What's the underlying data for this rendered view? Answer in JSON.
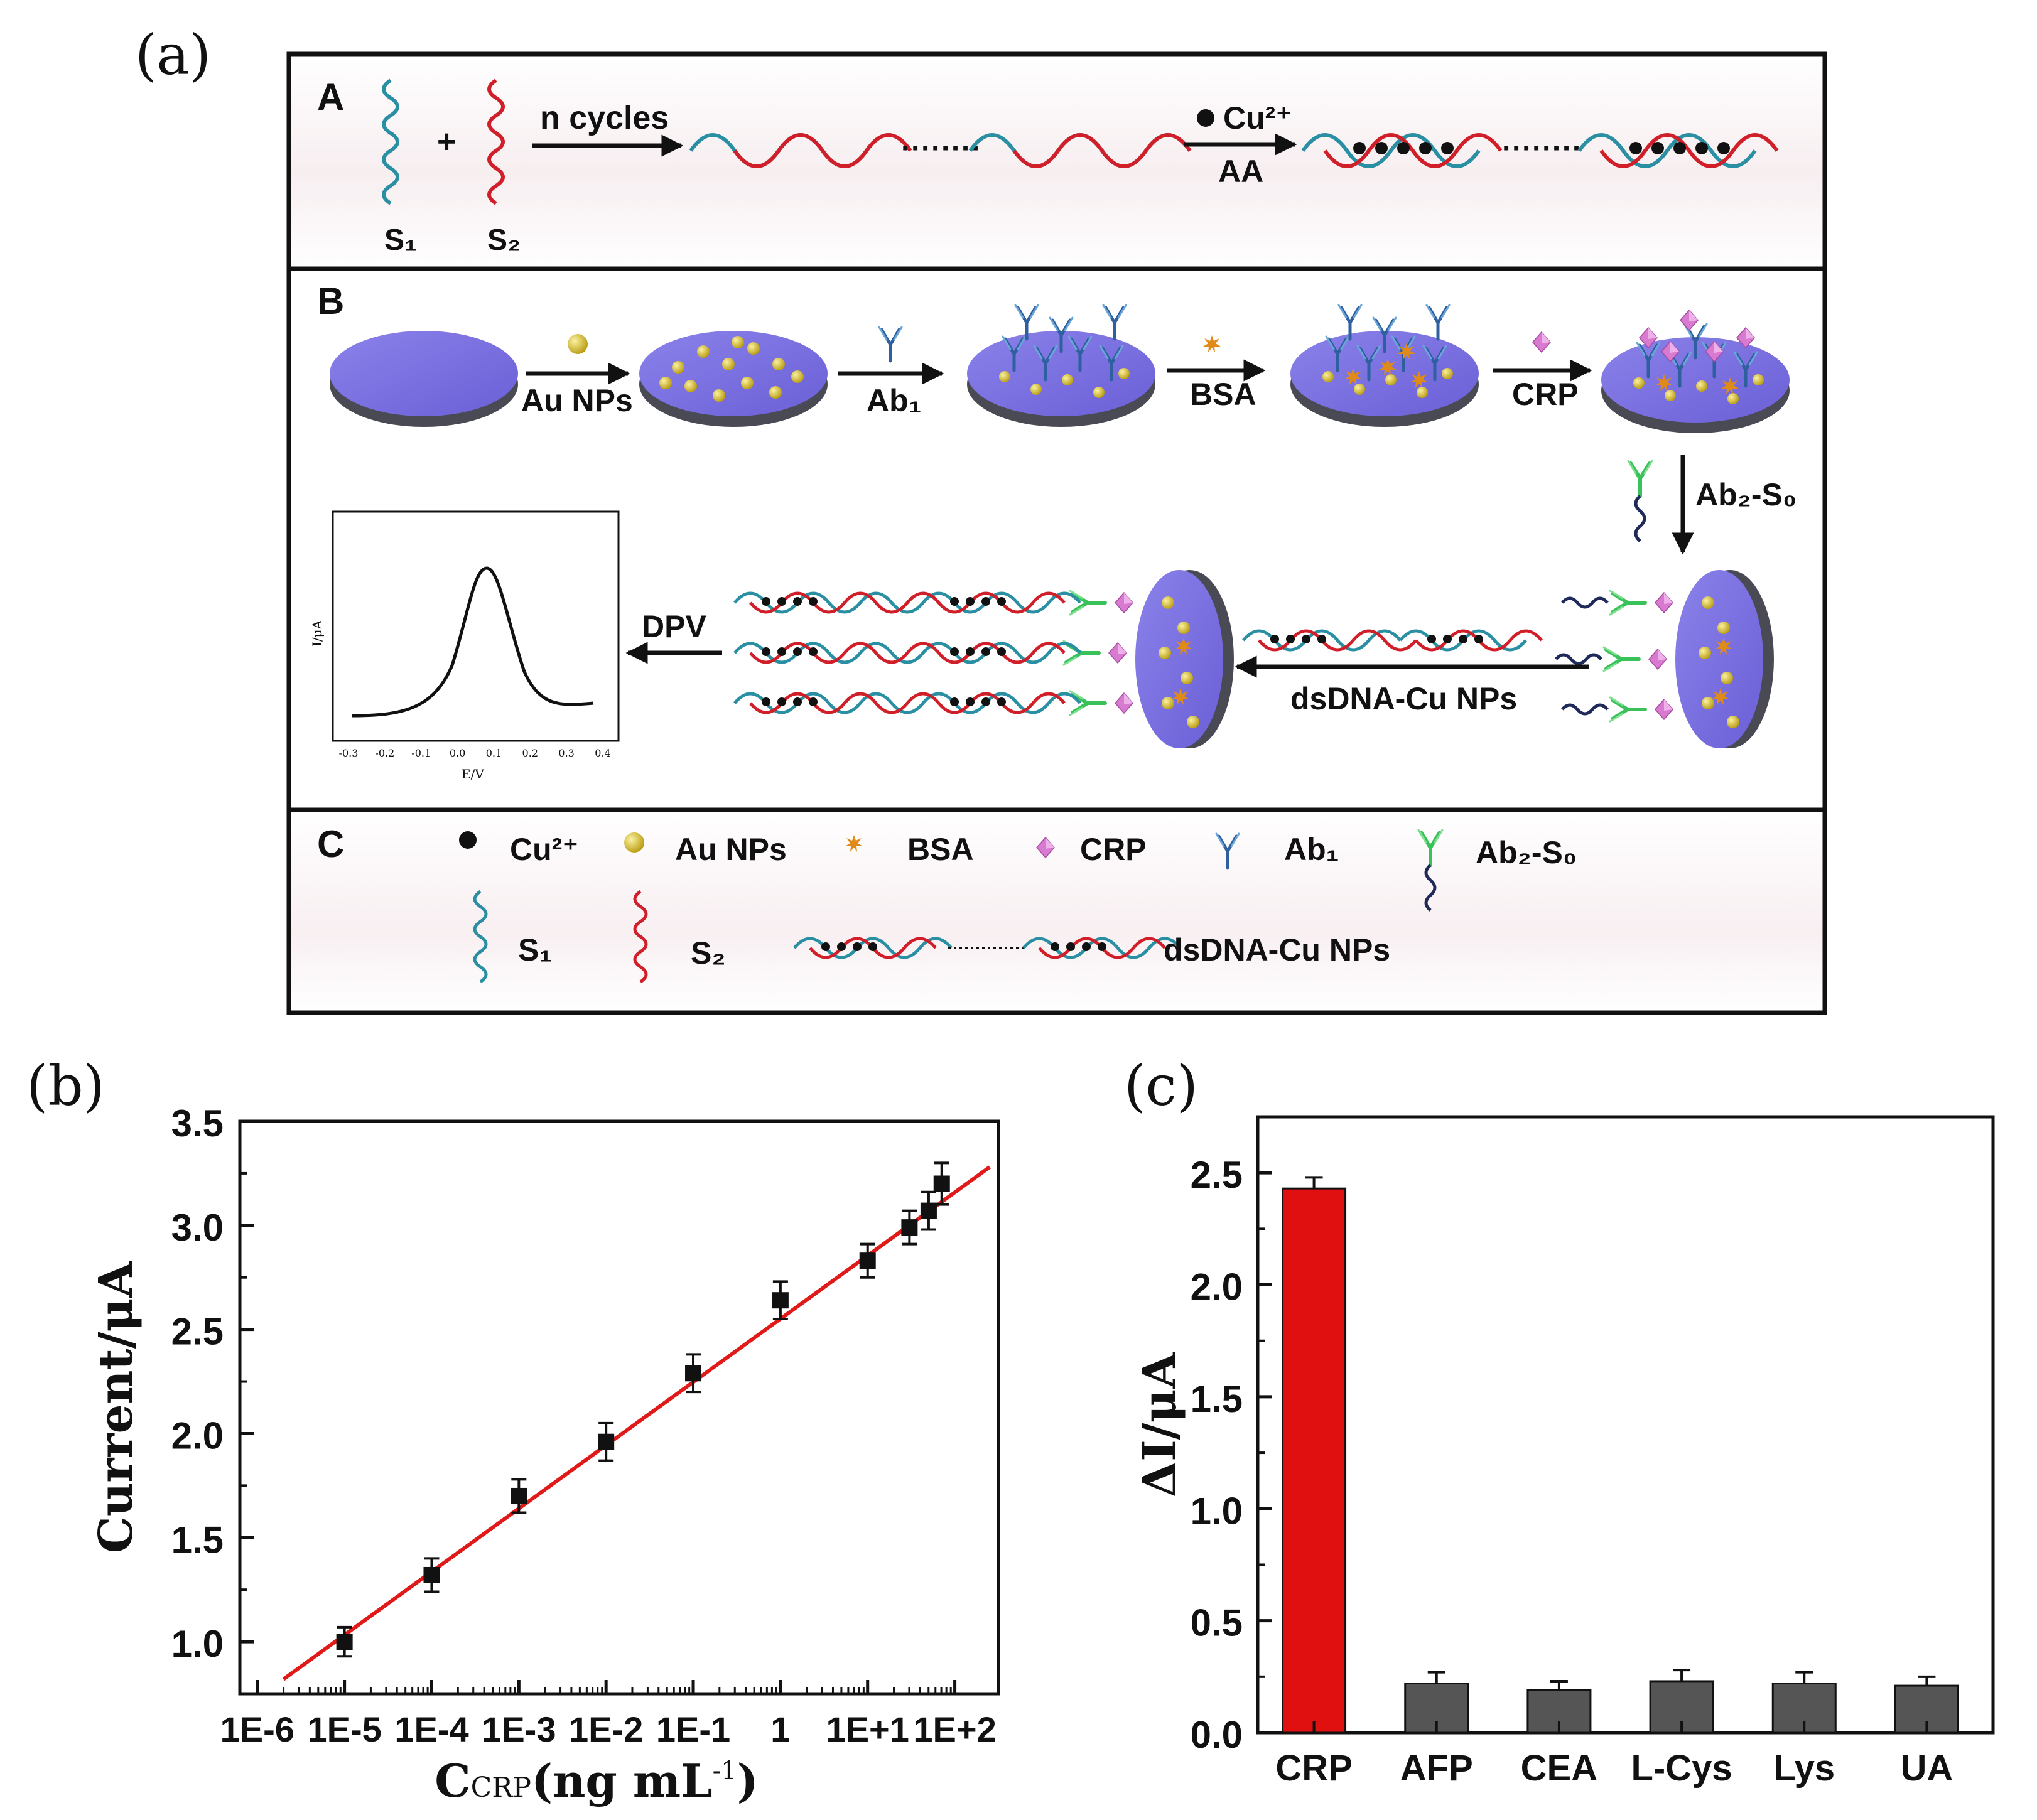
{
  "panel_labels": {
    "a": "(a)",
    "b": "(b)",
    "c": "(c)"
  },
  "scheme": {
    "section_A": {
      "letter": "A",
      "s1": "S₁",
      "s2": "S₂",
      "plus": "+",
      "arrow1_label": "n cycles",
      "arrow2_top": "Cu²⁺",
      "arrow2_bottom": "AA",
      "dots": "········"
    },
    "section_B": {
      "letter": "B",
      "step1": "Au NPs",
      "step2": "Ab₁",
      "step3": "BSA",
      "step4": "CRP",
      "step5": "Ab₂-S₀",
      "step6": "dsDNA-Cu NPs",
      "step7": "DPV",
      "inset": {
        "ylabel": "I/μA",
        "xlabel": "E/V",
        "ticks": [
          "-0.3",
          "-0.2",
          "-0.1",
          "0.0",
          "0.1",
          "0.2",
          "0.3",
          "0.4"
        ]
      }
    },
    "section_C": {
      "letter": "C",
      "legend": {
        "cu": "Cu²⁺",
        "au": "Au NPs",
        "bsa": "BSA",
        "crp": "CRP",
        "ab1": "Ab₁",
        "ab2": "Ab₂-S₀",
        "s1": "S₁",
        "s2": "S₂",
        "ds": "dsDNA-Cu NPs"
      }
    }
  },
  "colors": {
    "s1_teal": "#2a8fa3",
    "s2_red": "#d11f2a",
    "electrode_top": "#7a6fe0",
    "electrode_side": "#4a4a55",
    "au_np": "#d8c21e",
    "bsa": "#e08a1a",
    "crp": "#d77ad0",
    "ab1": "#2e5f9e",
    "ab2": "#39c25a",
    "fit_line": "#e01919",
    "bar_crp": "#e01010",
    "bar_other": "#555555"
  },
  "chart_data": [
    {
      "type": "scatter",
      "panel": "b",
      "xlabel": "CCRP (ng mL⁻¹)",
      "xlabel_main": "C",
      "xlabel_sub": "CRP",
      "xlabel_unit": "(ng mL",
      "xlabel_exp": "-1",
      "xlabel_close": ")",
      "ylabel": "Current/μA",
      "xscale": "log10",
      "xlim_log10": [
        -6.2,
        2.5
      ],
      "ylim": [
        0.75,
        3.5
      ],
      "yticks": [
        1.0,
        1.5,
        2.0,
        2.5,
        3.0,
        3.5
      ],
      "ytick_labels": [
        "1.0",
        "1.5",
        "2.0",
        "2.5",
        "3.0",
        "3.5"
      ],
      "xticks_log10": [
        -6,
        -5,
        -4,
        -3,
        -2,
        -1,
        0,
        1,
        2
      ],
      "xtick_labels": [
        "1E-6",
        "1E-5",
        "1E-4",
        "1E-3",
        "1E-2",
        "1E-1",
        "1",
        "1E+1",
        "1E+2"
      ],
      "points": [
        {
          "logx": -5.0,
          "y": 1.0,
          "err": 0.07
        },
        {
          "logx": -4.0,
          "y": 1.32,
          "err": 0.08
        },
        {
          "logx": -3.0,
          "y": 1.7,
          "err": 0.08
        },
        {
          "logx": -2.0,
          "y": 1.96,
          "err": 0.09
        },
        {
          "logx": -1.0,
          "y": 2.29,
          "err": 0.09
        },
        {
          "logx": 0.0,
          "y": 2.64,
          "err": 0.09
        },
        {
          "logx": 1.0,
          "y": 2.83,
          "err": 0.08
        },
        {
          "logx": 1.48,
          "y": 2.99,
          "err": 0.08
        },
        {
          "logx": 1.7,
          "y": 3.07,
          "err": 0.09
        },
        {
          "logx": 1.85,
          "y": 3.2,
          "err": 0.1
        }
      ],
      "fit": {
        "x0_log10": -5.7,
        "y0": 0.82,
        "x1_log10": 2.4,
        "y1": 3.28
      }
    },
    {
      "type": "bar",
      "panel": "c",
      "ylabel": "ΔI/μA",
      "categories": [
        "CRP",
        "AFP",
        "CEA",
        "L-Cys",
        "Lys",
        "UA"
      ],
      "values": [
        2.43,
        0.22,
        0.19,
        0.23,
        0.22,
        0.21
      ],
      "errors": [
        0.05,
        0.05,
        0.04,
        0.05,
        0.05,
        0.04
      ],
      "ylim": [
        0,
        2.75
      ],
      "yticks": [
        0.0,
        0.5,
        1.0,
        1.5,
        2.0,
        2.5
      ],
      "ytick_labels": [
        "0.0",
        "0.5",
        "1.0",
        "1.5",
        "2.0",
        "2.5"
      ]
    }
  ]
}
